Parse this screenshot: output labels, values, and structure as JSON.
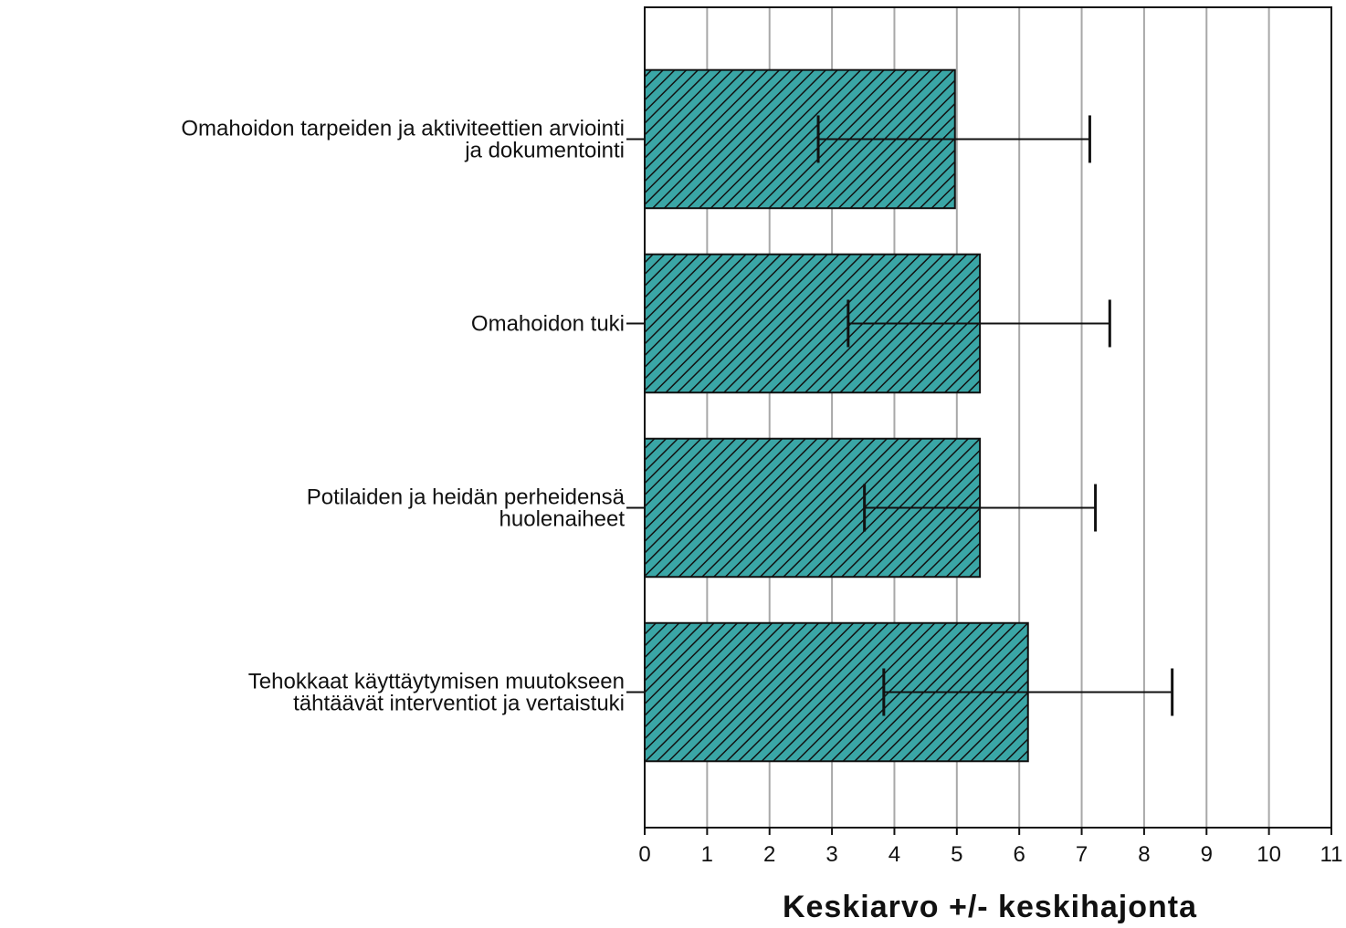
{
  "chart_data": {
    "type": "bar",
    "orientation": "horizontal",
    "categories": [
      [
        "Omahoidon tarpeiden ja aktiviteettien arviointi",
        "ja dokumentointi"
      ],
      [
        "Omahoidon tuki"
      ],
      [
        "Potilaiden ja heidän perheidensä",
        "huolenaiheet"
      ],
      [
        "Tehokkaat käyttäytymisen muutokseen",
        "tähtäävät interventiot ja vertaistuki"
      ]
    ],
    "values": [
      4.97,
      5.37,
      5.37,
      6.14
    ],
    "error_low": [
      2.78,
      3.26,
      3.52,
      3.83
    ],
    "error_high": [
      7.13,
      7.45,
      7.22,
      8.45
    ],
    "xlim": [
      0,
      11
    ],
    "xticks": [
      "0",
      "1",
      "2",
      "3",
      "4",
      "5",
      "6",
      "7",
      "8",
      "9",
      "10",
      "11"
    ],
    "xlabel": "Keskiarvo +/- keskihajonta",
    "grid": true,
    "legend": "none",
    "bar_color": "#3aa6a6",
    "hatch": "diagonal"
  }
}
